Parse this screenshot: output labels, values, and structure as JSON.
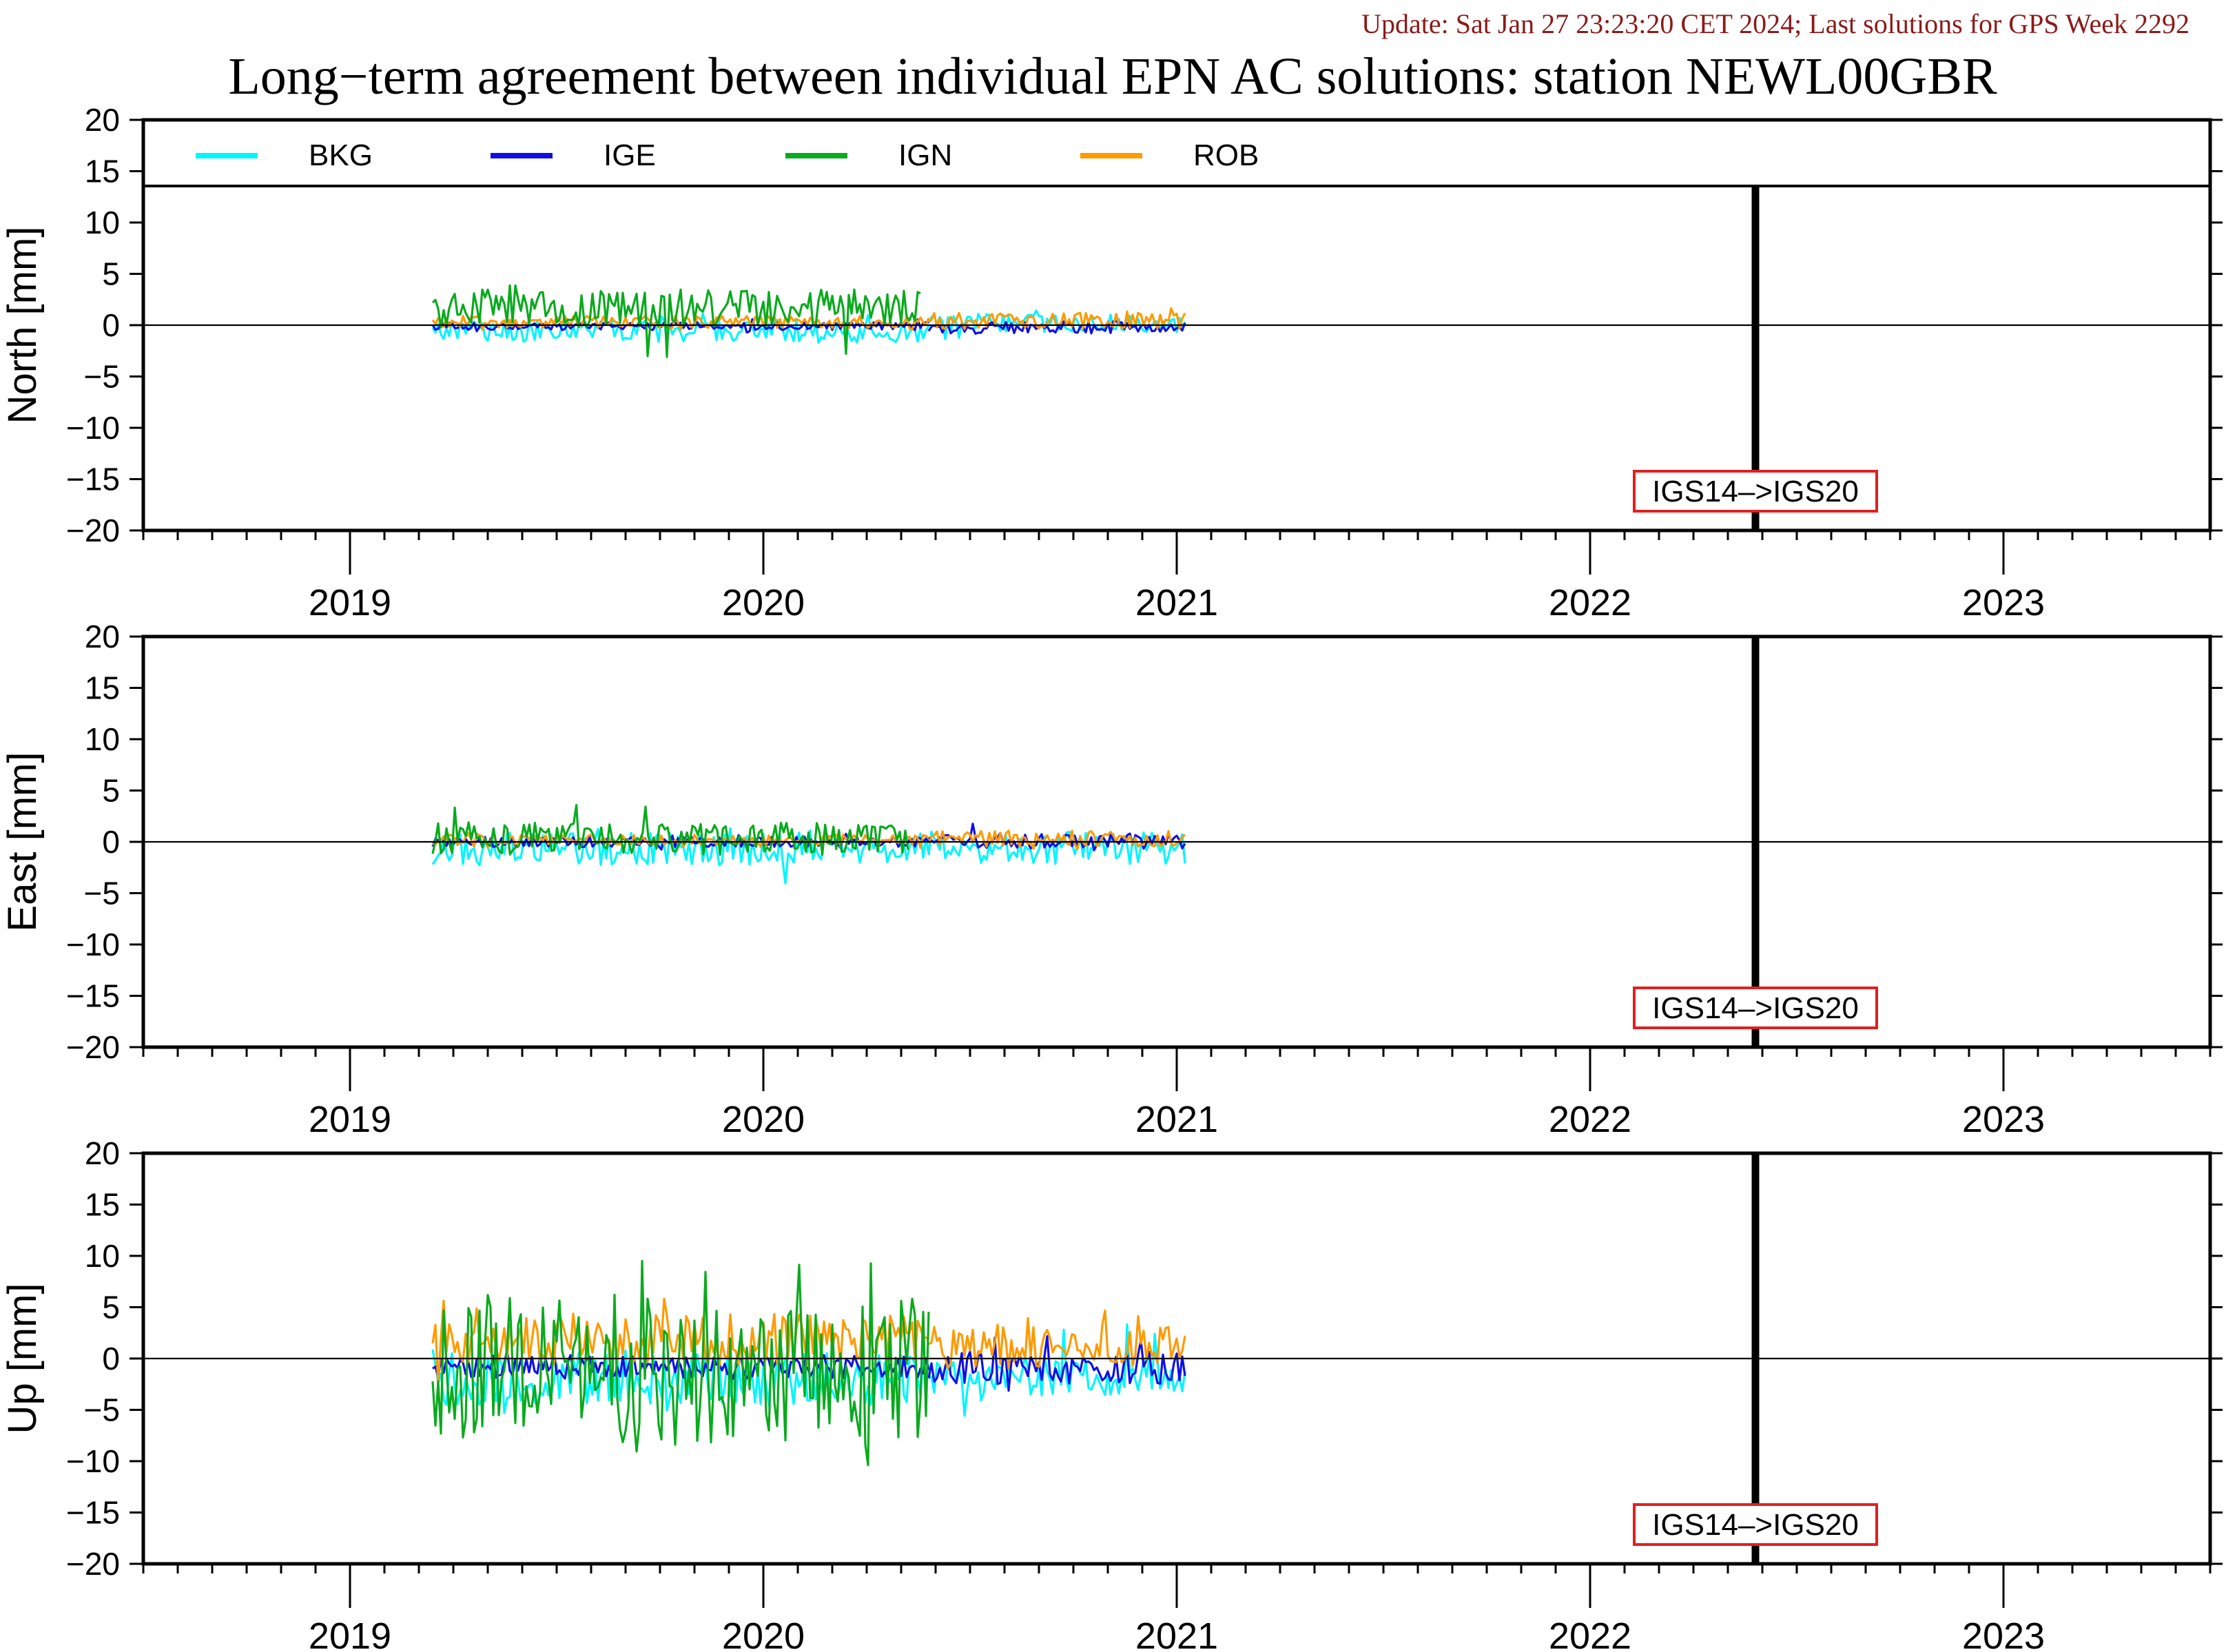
{
  "header": {
    "update_text": "Update: Sat Jan 27 23:23:20 CET 2024; Last solutions for GPS Week 2292"
  },
  "chart_data": {
    "type": "line",
    "title": "Long−term agreement between individual EPN AC solutions: station NEWL00GBR",
    "x_range": [
      2018.5,
      2023.5
    ],
    "x_ticks": [
      "2019",
      "2020",
      "2021",
      "2022",
      "2023"
    ],
    "y_range": [
      -20,
      20
    ],
    "y_ticks": [
      20,
      15,
      10,
      5,
      0,
      -5,
      -10,
      -15,
      -20
    ],
    "y_tick_labels": [
      "20",
      "15",
      "10",
      "5",
      "0",
      "−5",
      "−10",
      "−15",
      "−20"
    ],
    "legend": {
      "placement": "top-left, inside first panel",
      "entries": [
        "BKG",
        "IGE",
        "IGN",
        "ROB"
      ]
    },
    "colors": {
      "BKG": "#00f5ff",
      "IGE": "#1010e6",
      "IGN": "#0aaa1e",
      "ROB": "#ff9a00",
      "annotation": "#e02020",
      "update": "#8b1a1a"
    },
    "reference_frame_change": {
      "x": 2022.4,
      "label": "IGS14–>IGS20"
    },
    "panels": [
      {
        "ylabel": "North [mm]",
        "series": [
          {
            "name": "BKG",
            "segments": [
              {
                "x_start": 2019.2,
                "x_end": 2020.4,
                "mean": -0.6,
                "spread": 1.1,
                "spikes": [
                  -1.6,
                  1.2
                ]
              },
              {
                "x_start": 2020.4,
                "x_end": 2021.02,
                "mean": 0.2,
                "spread": 0.9,
                "spikes": [
                  -1.4,
                  1.6
                ]
              }
            ]
          },
          {
            "name": "IGE",
            "segments": [
              {
                "x_start": 2019.2,
                "x_end": 2020.4,
                "mean": -0.1,
                "spread": 0.4,
                "spikes": [
                  -0.8,
                  0.6
                ]
              },
              {
                "x_start": 2020.4,
                "x_end": 2021.02,
                "mean": -0.2,
                "spread": 0.6,
                "spikes": [
                  -1.0,
                  1.0
                ]
              }
            ]
          },
          {
            "name": "IGN",
            "segments": [
              {
                "x_start": 2019.2,
                "x_end": 2020.38,
                "mean": 1.6,
                "spread": 1.9,
                "spikes": [
                  -3.4,
                  4.6
                ]
              }
            ]
          },
          {
            "name": "ROB",
            "segments": [
              {
                "x_start": 2019.2,
                "x_end": 2020.4,
                "mean": 0.3,
                "spread": 0.6,
                "spikes": [
                  -0.6,
                  1.0
                ]
              },
              {
                "x_start": 2020.4,
                "x_end": 2021.02,
                "mean": 0.4,
                "spread": 0.8,
                "spikes": [
                  -0.8,
                  1.8
                ]
              }
            ]
          }
        ]
      },
      {
        "ylabel": "East [mm]",
        "series": [
          {
            "name": "BKG",
            "segments": [
              {
                "x_start": 2019.2,
                "x_end": 2020.4,
                "mean": -0.7,
                "spread": 1.6,
                "spikes": [
                  -4.6,
                  1.4
                ]
              },
              {
                "x_start": 2020.4,
                "x_end": 2021.02,
                "mean": -0.6,
                "spread": 1.6,
                "spikes": [
                  -4.4,
                  2.9
                ]
              }
            ]
          },
          {
            "name": "IGE",
            "segments": [
              {
                "x_start": 2019.2,
                "x_end": 2020.4,
                "mean": 0.0,
                "spread": 0.5,
                "spikes": [
                  -0.8,
                  0.8
                ]
              },
              {
                "x_start": 2020.4,
                "x_end": 2021.02,
                "mean": 0.1,
                "spread": 0.8,
                "spikes": [
                  -1.0,
                  1.8
                ]
              }
            ]
          },
          {
            "name": "IGN",
            "segments": [
              {
                "x_start": 2019.2,
                "x_end": 2020.35,
                "mean": 0.3,
                "spread": 1.6,
                "spikes": [
                  -2.4,
                  3.8
                ]
              }
            ]
          },
          {
            "name": "ROB",
            "segments": [
              {
                "x_start": 2019.2,
                "x_end": 2020.4,
                "mean": 0.2,
                "spread": 0.5,
                "spikes": [
                  -0.6,
                  0.9
                ]
              },
              {
                "x_start": 2020.4,
                "x_end": 2021.02,
                "mean": 0.3,
                "spread": 0.8,
                "spikes": [
                  -0.9,
                  1.6
                ]
              }
            ]
          }
        ]
      },
      {
        "ylabel": "Up [mm]",
        "series": [
          {
            "name": "BKG",
            "segments": [
              {
                "x_start": 2019.2,
                "x_end": 2020.4,
                "mean": -2.0,
                "spread": 2.6,
                "spikes": [
                  -5.5,
                  1.0
                ]
              },
              {
                "x_start": 2020.4,
                "x_end": 2021.02,
                "mean": -1.6,
                "spread": 2.0,
                "spikes": [
                  -5.6,
                  3.4
                ]
              }
            ]
          },
          {
            "name": "IGE",
            "segments": [
              {
                "x_start": 2019.2,
                "x_end": 2020.4,
                "mean": -0.8,
                "spread": 1.2,
                "spikes": [
                  -2.0,
                  1.0
                ]
              },
              {
                "x_start": 2020.4,
                "x_end": 2021.02,
                "mean": -0.9,
                "spread": 1.6,
                "spikes": [
                  -4.2,
                  2.5
                ]
              }
            ]
          },
          {
            "name": "IGN",
            "segments": [
              {
                "x_start": 2019.2,
                "x_end": 2020.4,
                "mean": -1.2,
                "spread": 7.5,
                "spikes": [
                  -11.2,
                  11.2
                ]
              }
            ]
          },
          {
            "name": "ROB",
            "segments": [
              {
                "x_start": 2019.2,
                "x_end": 2020.4,
                "mean": 1.8,
                "spread": 2.6,
                "spikes": [
                  -3.0,
                  6.8
                ]
              },
              {
                "x_start": 2020.4,
                "x_end": 2021.02,
                "mean": 1.2,
                "spread": 2.2,
                "spikes": [
                  -0.8,
                  5.2
                ]
              }
            ]
          }
        ]
      }
    ]
  }
}
